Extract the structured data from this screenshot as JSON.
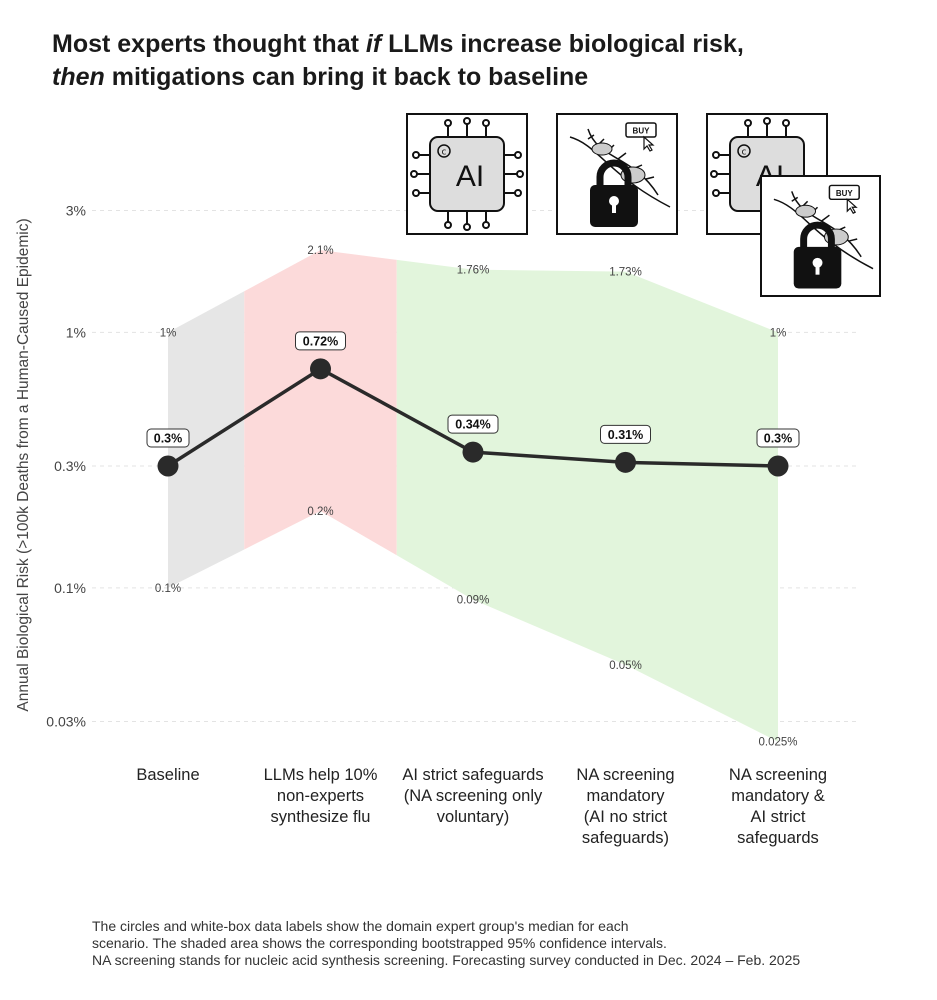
{
  "title": {
    "line1_parts": [
      "Most experts thought that ",
      "if",
      " LLMs increase biological risk,"
    ],
    "line2_parts": [
      "then",
      " mitigations can bring it back to baseline"
    ]
  },
  "chart_data": {
    "type": "line",
    "title": "Most experts thought that if LLMs increase biological risk, then mitigations can bring it back to baseline",
    "ylabel": "Annual Biological Risk (>100k Deaths from a Human-Caused Epidemic)",
    "xlabel": "",
    "yscale": "log",
    "ylim": [
      0.02,
      4.2
    ],
    "yticks": [
      {
        "value": 0.03,
        "label": "0.03%"
      },
      {
        "value": 0.1,
        "label": "0.1%"
      },
      {
        "value": 0.3,
        "label": "0.3%"
      },
      {
        "value": 1,
        "label": "1%"
      },
      {
        "value": 3,
        "label": "3%"
      }
    ],
    "categories": [
      "Baseline",
      "LLMs help 10%\nnon-experts\nsynthesize flu",
      "AI strict safeguards\n(NA screening only\nvoluntary)",
      "NA screening\nmandatory\n(AI no strict\nsafeguards)",
      "NA screening\nmandatory &\nAI strict\nsafeguards"
    ],
    "median": [
      0.3,
      0.72,
      0.34,
      0.31,
      0.3
    ],
    "median_labels": [
      "0.3%",
      "0.72%",
      "0.34%",
      "0.31%",
      "0.3%"
    ],
    "ci_upper": [
      1,
      2.1,
      1.76,
      1.73,
      1
    ],
    "ci_upper_labels": [
      "1%",
      "2.1%",
      "1.76%",
      "1.73%",
      "1%"
    ],
    "ci_lower": [
      0.1,
      0.2,
      0.09,
      0.05,
      0.025
    ],
    "ci_lower_labels": [
      "0.1%",
      "0.2%",
      "0.09%",
      "0.05%",
      "0.025%"
    ],
    "band_colors": [
      "#e6e6e6",
      "#fcdada",
      "#e2f5dc"
    ],
    "line_color": "#2a2a2a"
  },
  "icons": {
    "ai_chip_text": "AI",
    "buy_text": "BUY"
  },
  "footnote": [
    "The circles and white-box data labels show the domain expert group's median for each",
    "scenario. The shaded area shows the corresponding bootstrapped 95% confidence intervals.",
    "NA screening stands for nucleic acid synthesis screening. Forecasting survey conducted in Dec. 2024 – Feb. 2025"
  ]
}
